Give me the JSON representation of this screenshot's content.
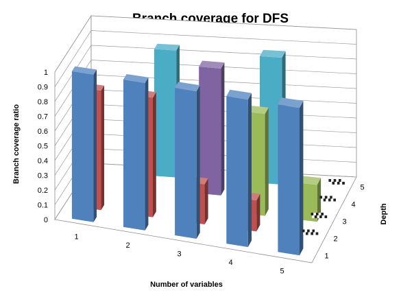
{
  "chart_data": {
    "type": "bar",
    "subtype": "3d-column",
    "title": "Branch coverage for DFS",
    "xlabel": "Number of variables",
    "ylabel": "Branch coverage ratio",
    "zlabel": "Depth",
    "categories": [
      "1",
      "2",
      "3",
      "4",
      "5"
    ],
    "y_ticks": [
      "0",
      "0.1",
      "0.2",
      "0.3",
      "0.4",
      "0.5",
      "0.6",
      "0.7",
      "0.8",
      "0.9",
      "1"
    ],
    "ylim": [
      0,
      1
    ],
    "series_labels": [
      "1",
      "2",
      "3",
      "4",
      "5"
    ],
    "series": [
      {
        "depth": 1,
        "color": "#4F81BD",
        "values": [
          1,
          1,
          1,
          1,
          1
        ]
      },
      {
        "depth": 2,
        "color": "#C0504D",
        "values": [
          0.81,
          0.81,
          0.27,
          0.21,
          0
        ]
      },
      {
        "depth": 3,
        "color": "#9BBB59",
        "values": [
          0,
          0,
          0,
          0.69,
          0.25
        ]
      },
      {
        "depth": 4,
        "color": "#8064A2",
        "values": [
          0,
          0,
          0.86,
          0,
          0
        ]
      },
      {
        "depth": 5,
        "color": "#4BACC6",
        "values": [
          0,
          0.86,
          0,
          0.86,
          0
        ]
      }
    ],
    "grid": true,
    "legend": "none"
  }
}
